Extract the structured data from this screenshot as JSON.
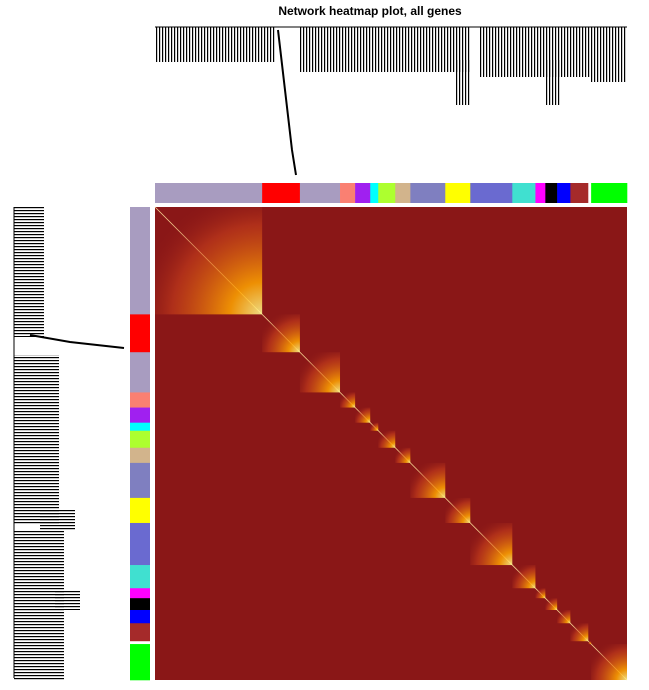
{
  "chart_data": {
    "type": "tom-heatmap",
    "title": "Network heatmap plot, all genes",
    "modules": [
      {
        "color": "#a89cc0",
        "size": 22.7
      },
      {
        "color": "#ff0000",
        "size": 8
      },
      {
        "color": "#a89cc0",
        "size": 8.5
      },
      {
        "color": "#fa8072",
        "size": 3.2
      },
      {
        "color": "#a020f0",
        "size": 3.2
      },
      {
        "color": "#00ffff",
        "size": 1.7
      },
      {
        "color": "#adff2f",
        "size": 3.6
      },
      {
        "color": "#d2b48c",
        "size": 3.2
      },
      {
        "color": "#7f7fc0",
        "size": 7.4
      },
      {
        "color": "#ffff00",
        "size": 5.3
      },
      {
        "color": "#6a6ad0",
        "size": 8.9
      },
      {
        "color": "#40e0d0",
        "size": 4.9
      },
      {
        "color": "#ff00ff",
        "size": 2.1
      },
      {
        "color": "#000000",
        "size": 2.5
      },
      {
        "color": "#0000ff",
        "size": 2.8
      },
      {
        "color": "#a52a2a",
        "size": 3.8
      },
      {
        "color": "#ffffff",
        "size": 0.6
      },
      {
        "color": "#00ff00",
        "size": 7.6
      }
    ]
  }
}
